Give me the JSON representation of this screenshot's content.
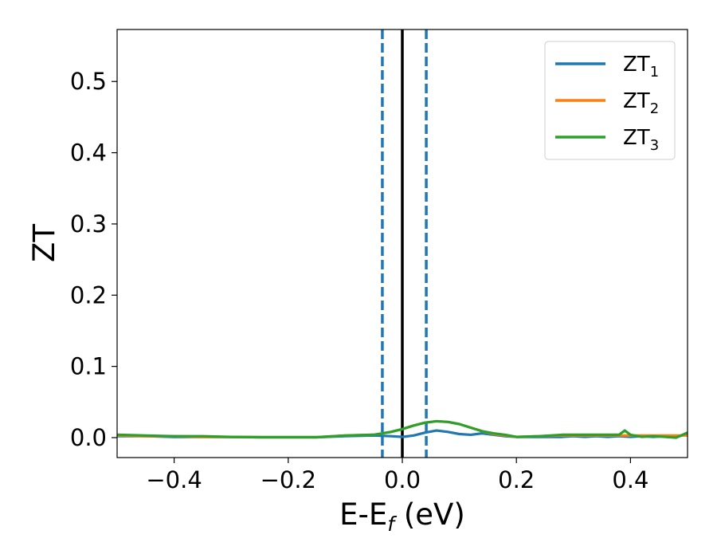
{
  "chart_data": {
    "type": "line",
    "xlabel": {
      "base": "E-E",
      "sub": "f",
      "suffix": " (eV)"
    },
    "ylabel": "ZT",
    "xlim": [
      -0.5,
      0.5
    ],
    "ylim": [
      -0.028,
      0.573
    ],
    "xticks": [
      -0.4,
      -0.2,
      0.0,
      0.2,
      0.4
    ],
    "xtick_labels": [
      "−0.4",
      "−0.2",
      "0.0",
      "0.2",
      "0.4"
    ],
    "yticks": [
      0.0,
      0.1,
      0.2,
      0.3,
      0.4,
      0.5
    ],
    "ytick_labels": [
      "0.0",
      "0.1",
      "0.2",
      "0.3",
      "0.4",
      "0.5"
    ],
    "grid": false,
    "legend_position": "top-right",
    "vlines": [
      {
        "x": -0.035,
        "style": "dashed",
        "color": "#1f77b4"
      },
      {
        "x": 0.0,
        "style": "solid",
        "color": "#000000"
      },
      {
        "x": 0.042,
        "style": "dashed",
        "color": "#1f77b4"
      }
    ],
    "series": [
      {
        "name": "ZT",
        "sub": "1",
        "color": "#1f77b4",
        "x": [
          -0.5,
          -0.45,
          -0.4,
          -0.35,
          -0.3,
          -0.25,
          -0.2,
          -0.15,
          -0.1,
          -0.05,
          -0.02,
          0.0,
          0.02,
          0.04,
          0.06,
          0.08,
          0.1,
          0.12,
          0.14,
          0.16,
          0.18,
          0.2,
          0.24,
          0.28,
          0.3,
          0.32,
          0.34,
          0.36,
          0.38,
          0.4,
          0.42,
          0.44,
          0.46,
          0.48,
          0.5
        ],
        "y": [
          0.002,
          0.002,
          0.001,
          0.001,
          0.001,
          0.0005,
          0.0005,
          0.0005,
          0.002,
          0.003,
          0.002,
          0.001,
          0.003,
          0.007,
          0.01,
          0.008,
          0.005,
          0.004,
          0.006,
          0.004,
          0.002,
          0.001,
          0.001,
          0.001,
          0.002,
          0.001,
          0.002,
          0.001,
          0.002,
          0.001,
          0.002,
          0.001,
          0.002,
          0.001,
          0.005
        ]
      },
      {
        "name": "ZT",
        "sub": "2",
        "color": "#ff7f0e",
        "x": [
          -0.5,
          -0.45,
          -0.4,
          -0.35,
          -0.3,
          -0.25,
          -0.2,
          -0.15,
          -0.1,
          -0.05,
          -0.02,
          0.0,
          0.02,
          0.04,
          0.06,
          0.08,
          0.1,
          0.12,
          0.14,
          0.16,
          0.18,
          0.2,
          0.24,
          0.28,
          0.3,
          0.32,
          0.34,
          0.36,
          0.38,
          0.4,
          0.42,
          0.44,
          0.46,
          0.48,
          0.5
        ],
        "y": [
          0.003,
          0.002,
          0.002,
          0.001,
          0.001,
          0.0005,
          0.0005,
          0.0005,
          0.003,
          0.004,
          0.008,
          0.012,
          0.017,
          0.021,
          0.023,
          0.022,
          0.019,
          0.014,
          0.009,
          0.005,
          0.003,
          0.001,
          0.002,
          0.003,
          0.003,
          0.003,
          0.003,
          0.003,
          0.003,
          0.003,
          0.003,
          0.003,
          0.003,
          0.003,
          0.003
        ]
      },
      {
        "name": "ZT",
        "sub": "3",
        "color": "#2ca02c",
        "x": [
          -0.5,
          -0.45,
          -0.4,
          -0.35,
          -0.3,
          -0.25,
          -0.2,
          -0.15,
          -0.1,
          -0.05,
          -0.02,
          0.0,
          0.02,
          0.04,
          0.06,
          0.08,
          0.1,
          0.12,
          0.14,
          0.16,
          0.18,
          0.2,
          0.24,
          0.28,
          0.3,
          0.32,
          0.34,
          0.36,
          0.38,
          0.39,
          0.4,
          0.42,
          0.44,
          0.46,
          0.48,
          0.5
        ],
        "y": [
          0.004,
          0.003,
          0.002,
          0.002,
          0.001,
          0.0005,
          0.0005,
          0.0005,
          0.003,
          0.004,
          0.008,
          0.012,
          0.017,
          0.021,
          0.023,
          0.022,
          0.019,
          0.014,
          0.009,
          0.006,
          0.004,
          0.001,
          0.002,
          0.004,
          0.004,
          0.004,
          0.004,
          0.004,
          0.004,
          0.01,
          0.004,
          0.001,
          0.002,
          0.001,
          0.0,
          0.007
        ]
      }
    ]
  }
}
